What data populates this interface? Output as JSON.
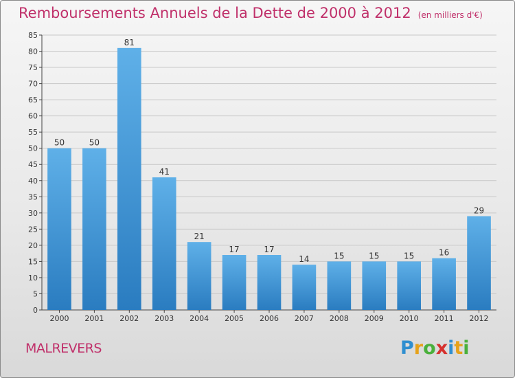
{
  "title": "Remboursements Annuels de la Dette de 2000 à 2012",
  "subtitle": "(en milliers d'€)",
  "commune": "MALREVERS",
  "logo": {
    "text": "Proxiti",
    "letters": [
      {
        "ch": "P",
        "color": "#2f8fd0"
      },
      {
        "ch": "r",
        "color": "#e6a21a"
      },
      {
        "ch": "o",
        "color": "#4ab03c"
      },
      {
        "ch": "x",
        "color": "#d6312e"
      },
      {
        "ch": "i",
        "color": "#2f8fd0"
      },
      {
        "ch": "t",
        "color": "#e6a21a"
      },
      {
        "ch": "i",
        "color": "#4ab03c"
      }
    ]
  },
  "colors": {
    "title": "#c0306a",
    "bar_top": "#5fb0e8",
    "bar_bottom": "#2a7cc0",
    "grid": "#c8c8c8"
  },
  "chart_data": {
    "type": "bar",
    "title": "Remboursements Annuels de la Dette de 2000 à 2012",
    "categories": [
      "2000",
      "2001",
      "2002",
      "2003",
      "2004",
      "2005",
      "2006",
      "2007",
      "2008",
      "2009",
      "2010",
      "2011",
      "2012"
    ],
    "values": [
      50,
      50,
      81,
      41,
      21,
      17,
      17,
      14,
      15,
      15,
      15,
      16,
      29
    ],
    "ylim": [
      0,
      85
    ],
    "yticks": [
      0,
      5,
      10,
      15,
      20,
      25,
      30,
      35,
      40,
      45,
      50,
      55,
      60,
      65,
      70,
      75,
      80,
      85
    ],
    "grid": true,
    "data_labels": true
  }
}
